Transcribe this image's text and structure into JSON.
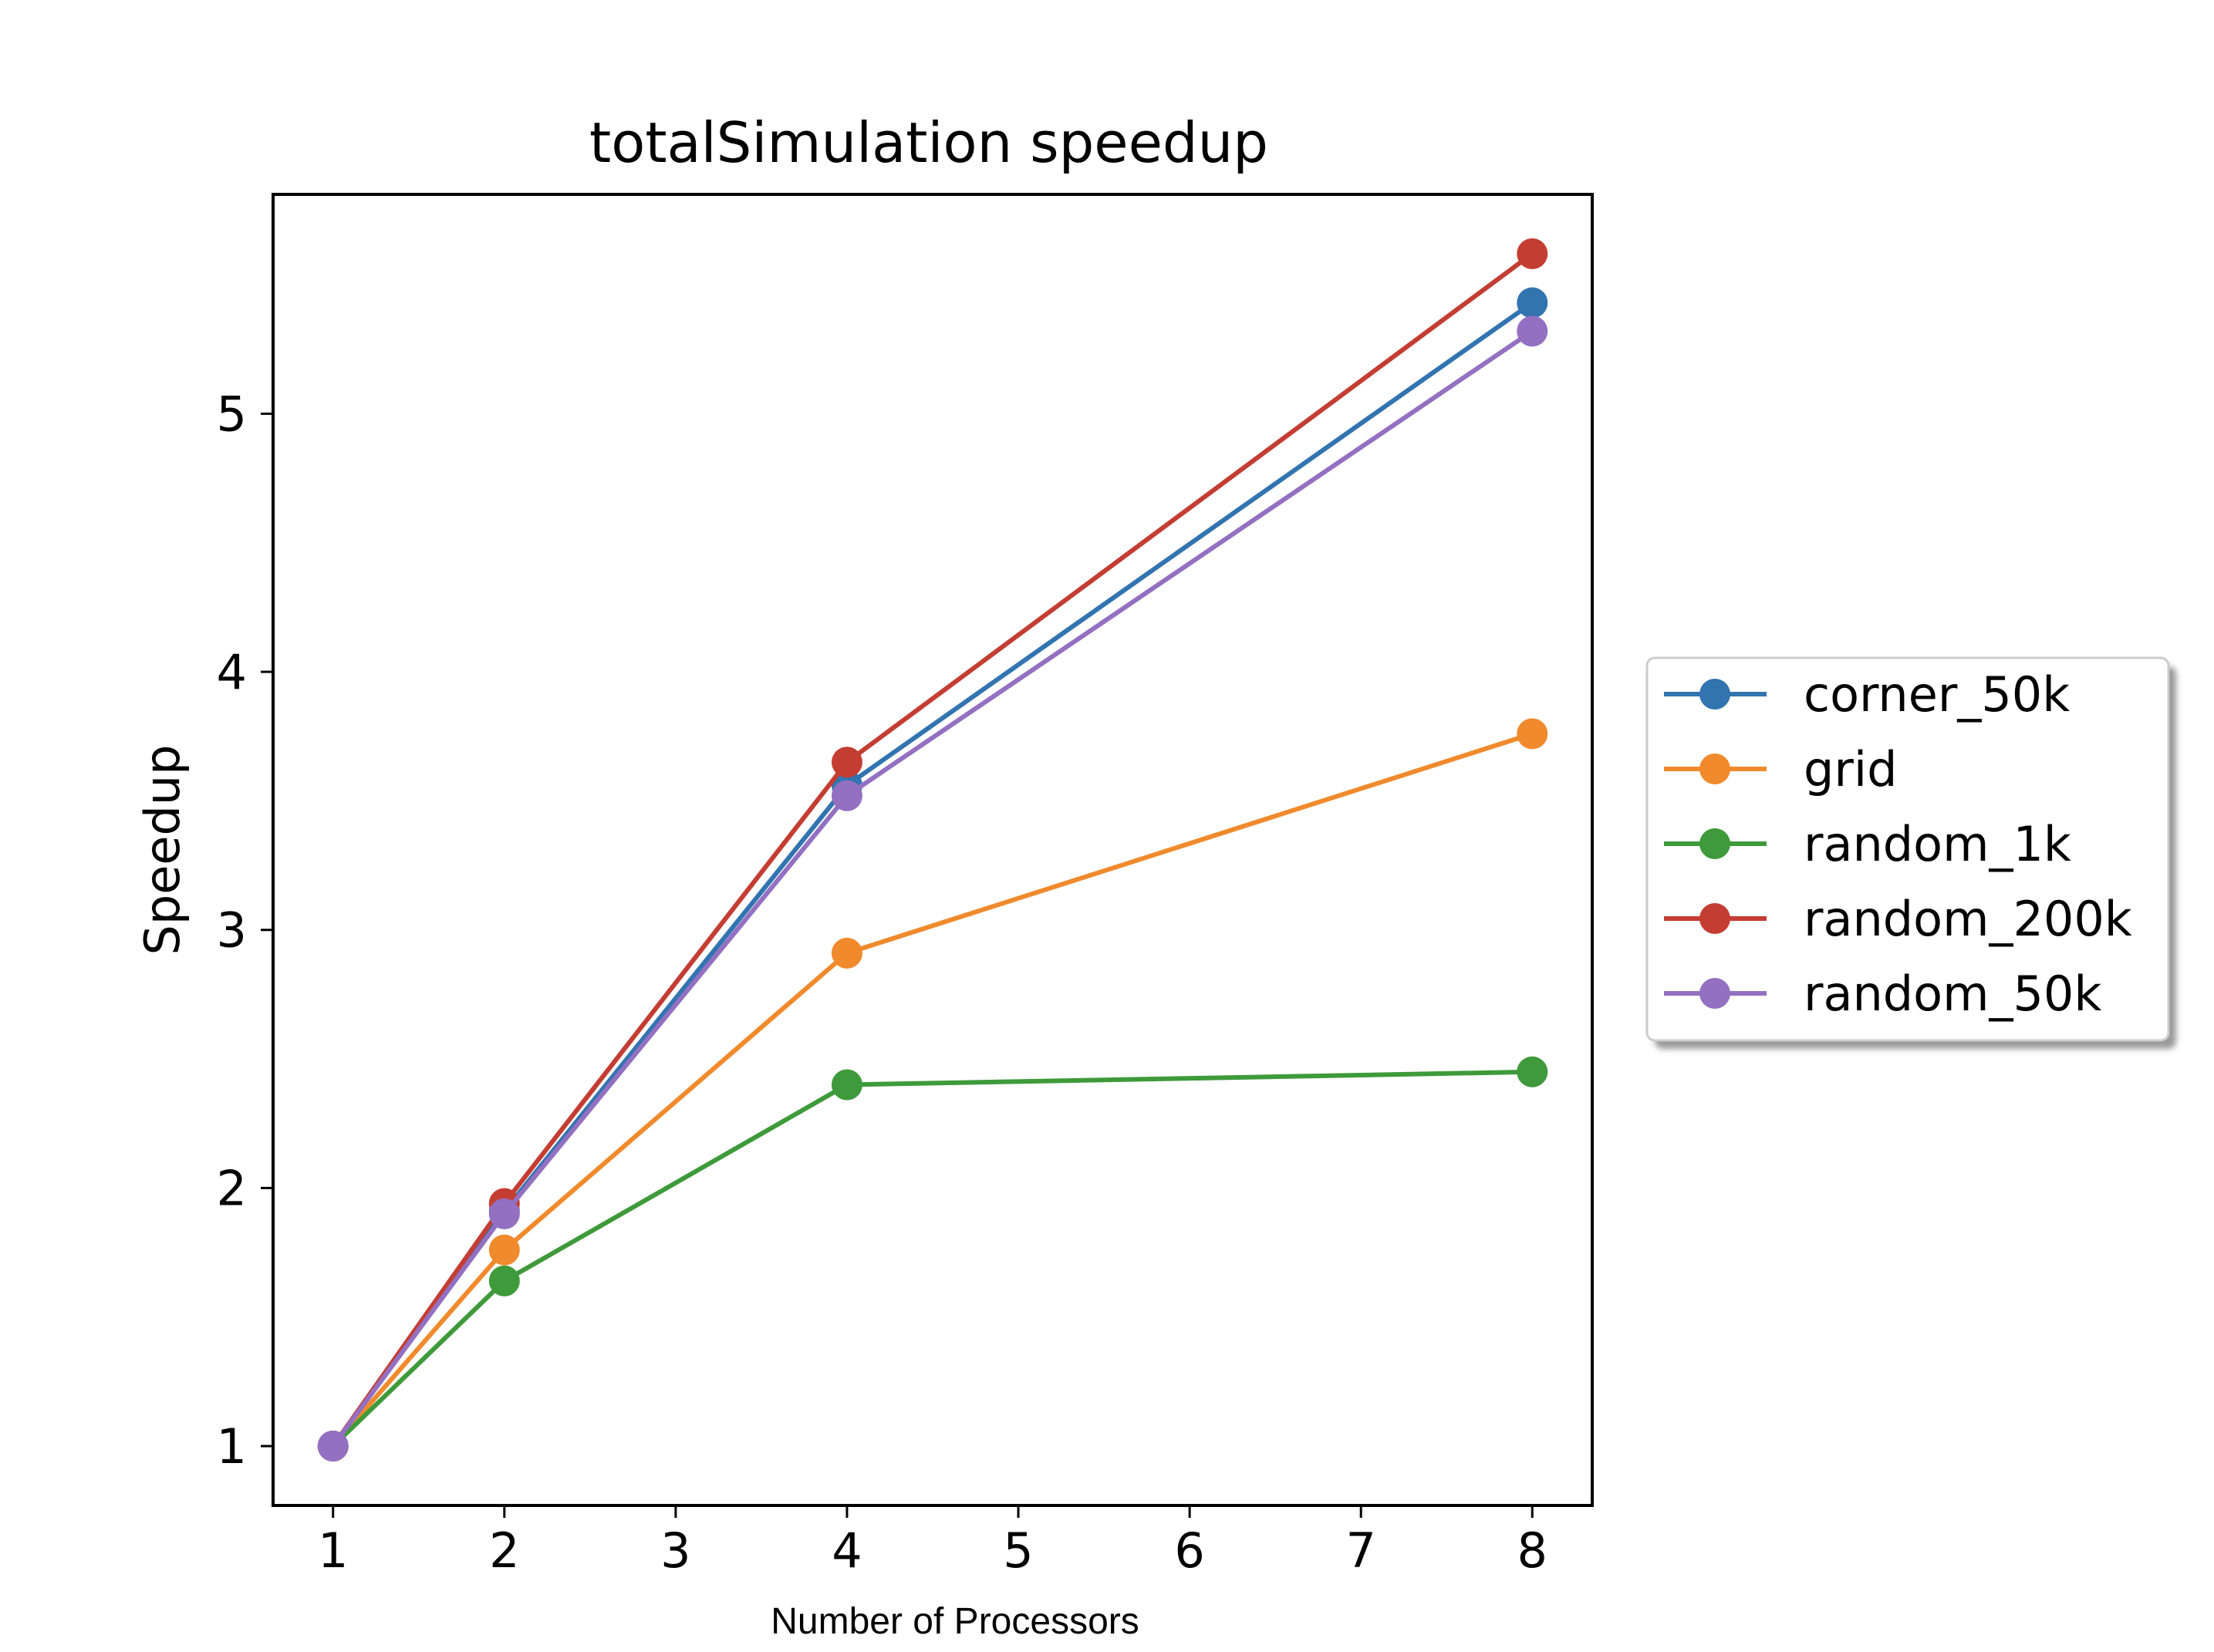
{
  "chart_data": {
    "type": "line",
    "title": "totalSimulation speedup",
    "xlabel": "Number of Processors",
    "ylabel": "Speedup",
    "x": [
      1,
      2,
      4,
      8
    ],
    "xlim": [
      0.65,
      8.35
    ],
    "ylim": [
      0.77,
      5.85
    ],
    "xticks": [
      "1",
      "2",
      "3",
      "4",
      "5",
      "6",
      "7",
      "8"
    ],
    "yticks": [
      "1",
      "2",
      "3",
      "4",
      "5"
    ],
    "grid": false,
    "legend_position": "outside-right",
    "series": [
      {
        "name": "corner_50k",
        "color": "#3274b0",
        "values": [
          1.0,
          1.91,
          3.56,
          5.43
        ]
      },
      {
        "name": "grid",
        "color": "#f08a2c",
        "values": [
          1.0,
          1.76,
          2.91,
          3.76
        ]
      },
      {
        "name": "random_1k",
        "color": "#3e9a3a",
        "values": [
          1.0,
          1.64,
          2.4,
          2.45
        ]
      },
      {
        "name": "random_200k",
        "color": "#c43d32",
        "values": [
          1.0,
          1.94,
          3.65,
          5.62
        ]
      },
      {
        "name": "random_50k",
        "color": "#9370c1",
        "values": [
          1.0,
          1.9,
          3.52,
          5.32
        ]
      }
    ]
  }
}
